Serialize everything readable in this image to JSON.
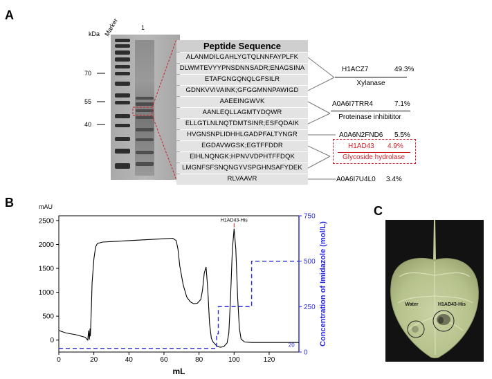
{
  "panel_a": {
    "label": "A",
    "kda_label": "kDa",
    "lane_labels": [
      "Marker",
      "1"
    ],
    "marker_kda": [
      "70",
      "55",
      "40"
    ],
    "peptide_header": "Peptide Sequence",
    "peptides": [
      "ALANMDILGAHLYGTQLNNFAYPLFK",
      "DLWMTEVYYPNSDNNSADR;ENAGSINA",
      "ETAFGNGQNQLGFSILR",
      "GDNKVVIVAINK;GFGGMNNPAWIGD",
      "AAEEINGWVK",
      "AANLEQLLAGMTYDQWR",
      "ELLGTLNLNQTDMTSINR;ESFQDAIK",
      "HVGNSNPLIDHHLGADPFALTYNGR",
      "EGDAVWGSK;EGTFFDDR",
      "EIHLNQNGK;HPNVVDPHTFFDQK",
      "LMGNFSFSNQNGYVSPGHNSAFYDEK",
      "RLVAAVR"
    ],
    "proteins": [
      {
        "id": "H1ACZ7",
        "pct": "49.3%",
        "name": "Xylanase"
      },
      {
        "id": "A0A6I7TRR4",
        "pct": "7.1%",
        "name": "Proteinase inhibititor"
      },
      {
        "id": "A0A6N2FND6",
        "pct": "5.5%",
        "name": ""
      },
      {
        "id": "H1AD43",
        "pct": "4.9%",
        "name": "Glycoside hydrolase"
      },
      {
        "id": "A0A6I7U4L0",
        "pct": "3.4%",
        "name": ""
      }
    ],
    "highlight_color": "#d0202a"
  },
  "panel_b": {
    "label": "B",
    "chart_data": {
      "type": "line",
      "title": "",
      "xlabel": "mL",
      "ylabel_left": "mAU",
      "ylabel_right": "Concentration of Imidazole (mol/L)",
      "xlim": [
        0,
        137
      ],
      "ylim_left": [
        -250,
        2600
      ],
      "ylim_right": [
        0,
        750
      ],
      "x_ticks": [
        "0",
        "20",
        "40",
        "60",
        "80",
        "100",
        "120"
      ],
      "y_left_ticks": [
        "0",
        "500",
        "1000",
        "1500",
        "2000",
        "2500"
      ],
      "y_right_ticks": [
        "0",
        "250",
        "500",
        "750"
      ],
      "peak_label": "H1AD43-His",
      "imidazole_low_label": "20",
      "series": [
        {
          "style": "solid",
          "color": "#000000",
          "axis": "left",
          "x": [
            0,
            4,
            10,
            15,
            16.5,
            17,
            17.4,
            17.8,
            18,
            18.6,
            19,
            20,
            21,
            22,
            25,
            30,
            40,
            50,
            60,
            65,
            67,
            68,
            69,
            71,
            73,
            75,
            77,
            79,
            81,
            82,
            83,
            84,
            85,
            86,
            87,
            88,
            90,
            92,
            94,
            96,
            97,
            98,
            99,
            100,
            101,
            102,
            103,
            104,
            106,
            110,
            115,
            120,
            130,
            137
          ],
          "y": [
            200,
            150,
            110,
            60,
            0,
            200,
            10,
            240,
            80,
            700,
            1200,
            1700,
            1950,
            2020,
            2050,
            2060,
            2080,
            2100,
            2120,
            2130,
            2080,
            1900,
            1550,
            1150,
            900,
            800,
            760,
            770,
            850,
            1050,
            1400,
            1530,
            1050,
            350,
            40,
            -40,
            -120,
            -150,
            -140,
            -60,
            150,
            900,
            1900,
            2330,
            1900,
            900,
            250,
            20,
            -40,
            -50,
            -50,
            -50,
            -50,
            -50
          ]
        },
        {
          "style": "dashed",
          "color": "#2a2adf",
          "axis": "right",
          "x": [
            0,
            90,
            90,
            91,
            91,
            110,
            110,
            137
          ],
          "y": [
            20,
            20,
            100,
            100,
            250,
            250,
            500,
            500
          ]
        }
      ]
    }
  },
  "panel_c": {
    "label": "C",
    "labels": [
      "Water",
      "H1AD43-His"
    ]
  }
}
